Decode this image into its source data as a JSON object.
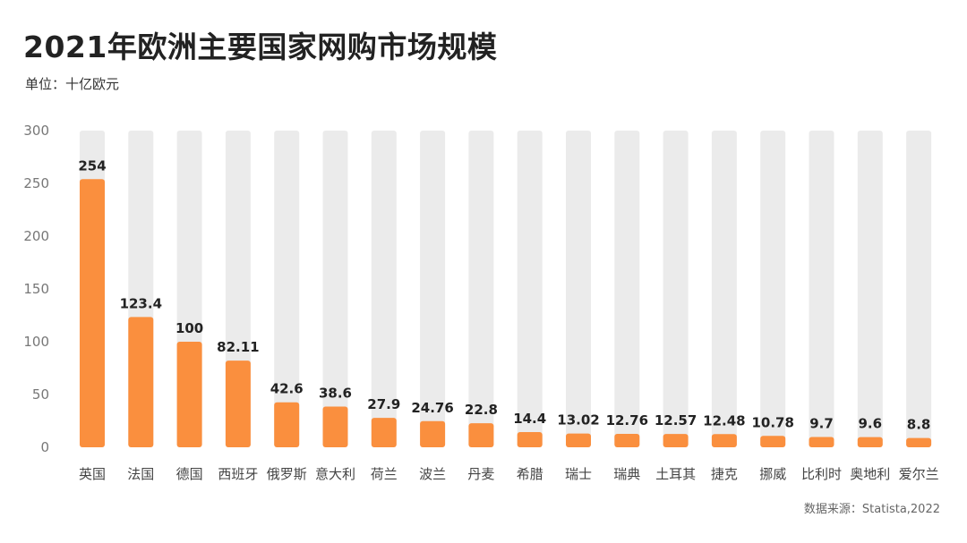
{
  "title": "2021年欧洲主要国家网购市场规模",
  "subtitle": "单位：十亿欧元",
  "source": "数据来源：Statista,2022",
  "colors": {
    "bar": "#FA8F3E",
    "track": "#EBEBEB"
  },
  "chart_data": {
    "type": "bar",
    "categories": [
      "英国",
      "法国",
      "德国",
      "西班牙",
      "俄罗斯",
      "意大利",
      "荷兰",
      "波兰",
      "丹麦",
      "希腊",
      "瑞士",
      "瑞典",
      "土耳其",
      "捷克",
      "挪威",
      "比利时",
      "奥地利",
      "爱尔兰"
    ],
    "values": [
      254,
      123.4,
      100,
      82.11,
      42.6,
      38.6,
      27.9,
      24.76,
      22.8,
      14.4,
      13.02,
      12.76,
      12.57,
      12.48,
      10.78,
      9.7,
      9.6,
      8.8
    ],
    "value_labels": [
      "254",
      "123.4",
      "100",
      "82.11",
      "42.6",
      "38.6",
      "27.9",
      "24.76",
      "22.8",
      "14.4",
      "13.02",
      "12.76",
      "12.57",
      "12.48",
      "10.78",
      "9.7",
      "9.6",
      "8.8"
    ],
    "yticks": [
      "0",
      "50",
      "100",
      "150",
      "200",
      "250",
      "300"
    ],
    "ylim": [
      0,
      300
    ],
    "grid": false,
    "legend": "none"
  }
}
